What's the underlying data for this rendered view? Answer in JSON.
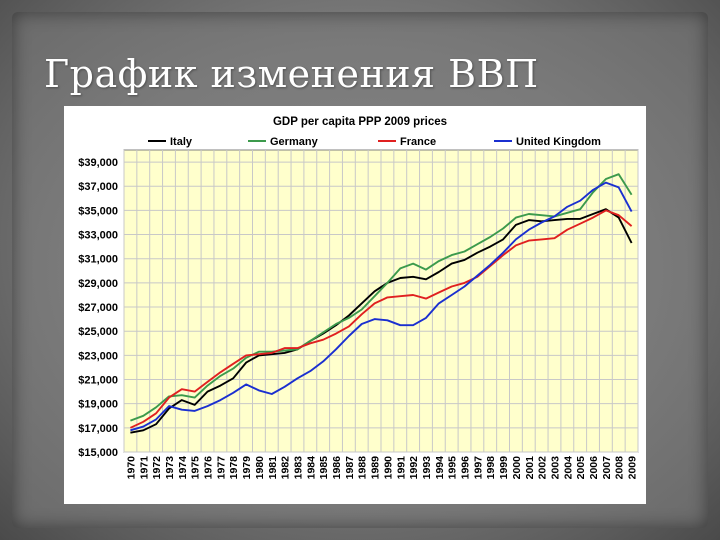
{
  "slide": {
    "title": "График изменения ВВП"
  },
  "colors": {
    "plot_bg": "#ffffcc",
    "grid": "#c8c8c8",
    "Italy": "#000000",
    "Germany": "#3c9a4c",
    "France": "#e02020",
    "United Kingdom": "#1a2fd0"
  },
  "chart_data": {
    "type": "line",
    "title": "GDP per capita PPP 2009 prices",
    "xlabel": "",
    "ylabel": "",
    "ylim": [
      15000,
      40000
    ],
    "yticks": [
      15000,
      17000,
      19000,
      21000,
      23000,
      25000,
      27000,
      29000,
      31000,
      33000,
      35000,
      37000,
      39000
    ],
    "ytick_labels": [
      "$15,000",
      "$17,000",
      "$19,000",
      "$21,000",
      "$23,000",
      "$25,000",
      "$27,000",
      "$29,000",
      "$31,000",
      "$33,000",
      "$35,000",
      "$37,000",
      "$39,000"
    ],
    "grid": true,
    "legend": "top",
    "x": [
      "1970",
      "1971",
      "1972",
      "1973",
      "1974",
      "1975",
      "1976",
      "1977",
      "1978",
      "1979",
      "1980",
      "1981",
      "1982",
      "1983",
      "1984",
      "1985",
      "1986",
      "1987",
      "1988",
      "1989",
      "1990",
      "1991",
      "1992",
      "1993",
      "1994",
      "1995",
      "1996",
      "1997",
      "1998",
      "1999",
      "2000",
      "2001",
      "2002",
      "2003",
      "2004",
      "2005",
      "2006",
      "2007",
      "2008",
      "2009"
    ],
    "series": [
      {
        "name": "Italy",
        "values": [
          16600,
          16800,
          17300,
          18600,
          19300,
          18900,
          20000,
          20500,
          21100,
          22400,
          23000,
          23100,
          23200,
          23500,
          24200,
          24800,
          25500,
          26300,
          27300,
          28300,
          29000,
          29400,
          29500,
          29300,
          29900,
          30600,
          30900,
          31500,
          32000,
          32600,
          33800,
          34200,
          34100,
          34200,
          34300,
          34300,
          34700,
          35100,
          34400,
          32300
        ]
      },
      {
        "name": "Germany",
        "values": [
          17600,
          18000,
          18700,
          19600,
          19700,
          19500,
          20500,
          21300,
          21900,
          22800,
          23300,
          23300,
          23400,
          23500,
          24200,
          24900,
          25600,
          26100,
          26800,
          27900,
          29000,
          30200,
          30600,
          30100,
          30800,
          31300,
          31600,
          32200,
          32800,
          33500,
          34400,
          34700,
          34600,
          34500,
          34800,
          35100,
          36500,
          37600,
          38000,
          36300
        ]
      },
      {
        "name": "France",
        "values": [
          17000,
          17500,
          18200,
          19500,
          20200,
          20000,
          20800,
          21600,
          22300,
          23000,
          23100,
          23200,
          23600,
          23600,
          24000,
          24300,
          24800,
          25400,
          26400,
          27300,
          27800,
          27900,
          28000,
          27700,
          28200,
          28700,
          29000,
          29500,
          30400,
          31300,
          32100,
          32500,
          32600,
          32700,
          33400,
          33900,
          34400,
          35000,
          34600,
          33700
        ]
      },
      {
        "name": "United Kingdom",
        "values": [
          16800,
          17100,
          17700,
          18800,
          18500,
          18400,
          18800,
          19300,
          19900,
          20600,
          20100,
          19800,
          20400,
          21100,
          21700,
          22500,
          23500,
          24600,
          25600,
          26000,
          25900,
          25500,
          25500,
          26100,
          27300,
          28000,
          28700,
          29600,
          30500,
          31500,
          32600,
          33400,
          34000,
          34500,
          35300,
          35800,
          36700,
          37300,
          36900,
          34900
        ]
      }
    ]
  }
}
